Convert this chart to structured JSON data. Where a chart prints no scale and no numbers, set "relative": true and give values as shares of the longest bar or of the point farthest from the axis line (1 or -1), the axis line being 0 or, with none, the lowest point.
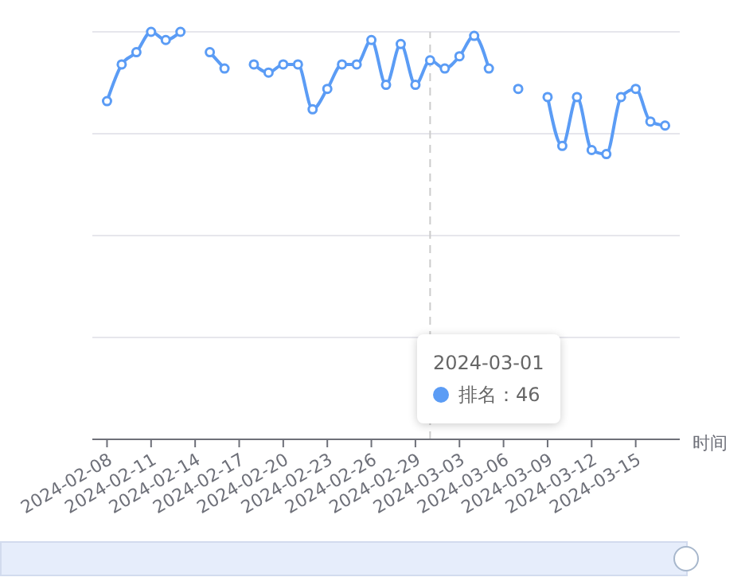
{
  "chart_data": {
    "type": "line",
    "relative": true,
    "xlabel": "时间",
    "x": [
      "2024-02-08",
      "2024-02-09",
      "2024-02-10",
      "2024-02-11",
      "2024-02-12",
      "2024-02-13",
      "2024-02-14",
      "2024-02-15",
      "2024-02-16",
      "2024-02-17",
      "2024-02-18",
      "2024-02-19",
      "2024-02-20",
      "2024-02-21",
      "2024-02-22",
      "2024-02-23",
      "2024-02-24",
      "2024-02-25",
      "2024-02-26",
      "2024-02-27",
      "2024-02-28",
      "2024-02-29",
      "2024-03-01",
      "2024-03-02",
      "2024-03-03",
      "2024-03-04",
      "2024-03-05",
      "2024-03-06",
      "2024-03-07",
      "2024-03-08",
      "2024-03-09",
      "2024-03-10",
      "2024-03-11",
      "2024-03-12",
      "2024-03-13",
      "2024-03-14",
      "2024-03-15",
      "2024-03-16",
      "2024-03-17"
    ],
    "series": [
      {
        "color": "#5b9cf5",
        "values": [
          0.83,
          0.92,
          0.95,
          1.0,
          0.98,
          1.0,
          null,
          0.95,
          0.91,
          null,
          0.92,
          0.9,
          0.92,
          0.92,
          0.81,
          0.86,
          0.92,
          0.92,
          0.98,
          0.87,
          0.97,
          0.87,
          0.93,
          0.91,
          0.94,
          0.99,
          0.91,
          null,
          0.86,
          null,
          0.84,
          0.72,
          0.84,
          0.71,
          0.7,
          0.84,
          0.86,
          0.78,
          0.77
        ]
      }
    ],
    "xlim": [
      "2024-02-07",
      "2024-03-18"
    ],
    "xticks": [
      "2024-02-08",
      "2024-02-11",
      "2024-02-14",
      "2024-02-17",
      "2024-02-20",
      "2024-02-23",
      "2024-02-26",
      "2024-02-29",
      "2024-03-03",
      "2024-03-06",
      "2024-03-09",
      "2024-03-12",
      "2024-03-15"
    ],
    "grid": "y",
    "marker": "circle",
    "line_style": "solid",
    "ref_lines": [
      {
        "axis": "x",
        "value": "2024-03-01",
        "line_style": "dashed",
        "color": "#cccccc"
      }
    ],
    "annotations": [
      "2024-03-01",
      "排名：46"
    ]
  }
}
